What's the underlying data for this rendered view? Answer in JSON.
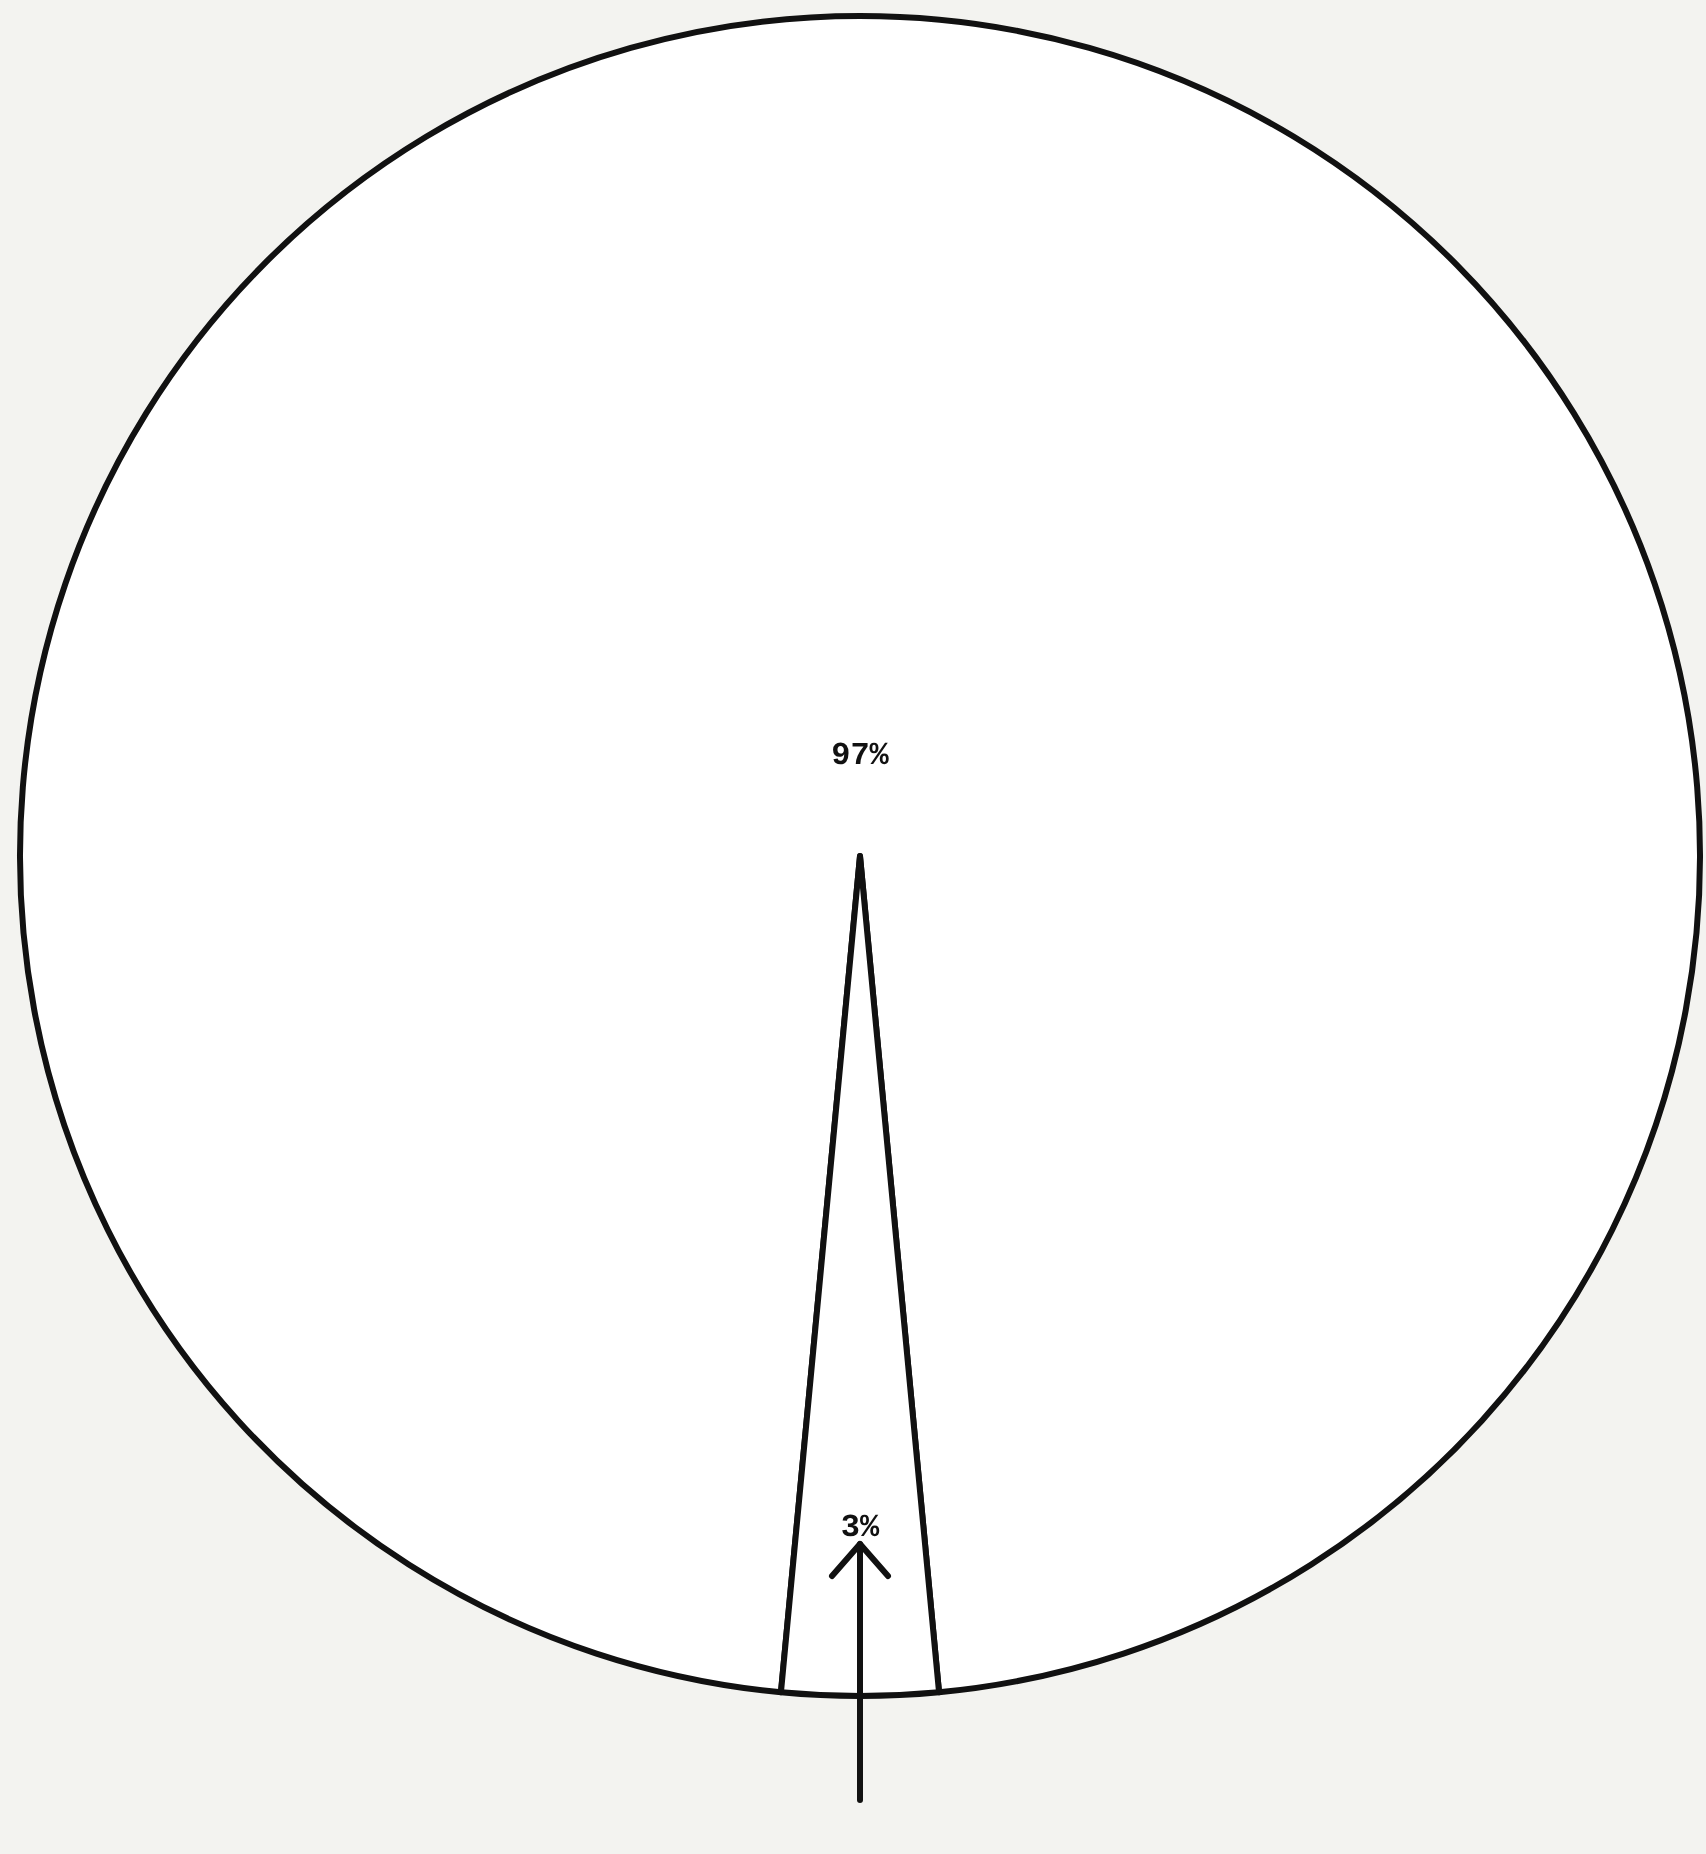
{
  "chart_data": {
    "type": "pie",
    "categories": [
      null,
      null
    ],
    "values": [
      97,
      3
    ],
    "colors": [
      "#ffffff",
      "#ffffff"
    ],
    "value_labels": [
      "97%",
      "3%"
    ]
  }
}
